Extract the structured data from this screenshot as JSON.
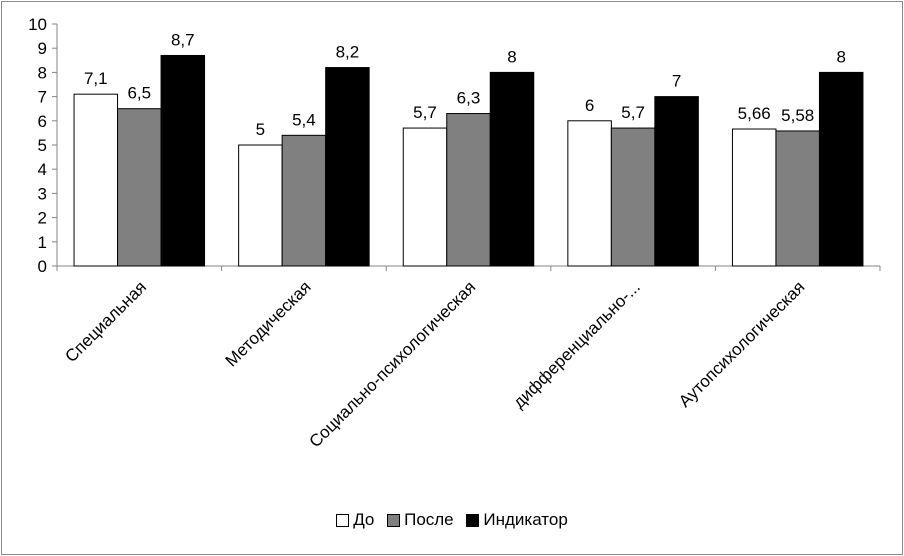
{
  "chart_data": {
    "type": "bar",
    "categories": [
      "Специальная",
      "Методическая",
      "Социально-психологическая",
      "дифференциально-...",
      "Аутопсихологическая"
    ],
    "series": [
      {
        "name": "До",
        "color": "#ffffff",
        "values": [
          7.1,
          5,
          5.7,
          6,
          5.66
        ],
        "labels": [
          "7,1",
          "5",
          "5,7",
          "6",
          "5,66"
        ]
      },
      {
        "name": "После",
        "color": "#808080",
        "values": [
          6.5,
          5.4,
          6.3,
          5.7,
          5.58
        ],
        "labels": [
          "6,5",
          "5,4",
          "6,3",
          "5,7",
          "5,58"
        ]
      },
      {
        "name": "Индикатор",
        "color": "#000000",
        "values": [
          8.7,
          8.2,
          8,
          7,
          8
        ],
        "labels": [
          "8,7",
          "8,2",
          "8",
          "7",
          "8"
        ]
      }
    ],
    "yticks": [
      0,
      1,
      2,
      3,
      4,
      5,
      6,
      7,
      8,
      9,
      10
    ],
    "ylim": [
      0,
      10
    ],
    "grid": false,
    "legend_position": "bottom"
  }
}
